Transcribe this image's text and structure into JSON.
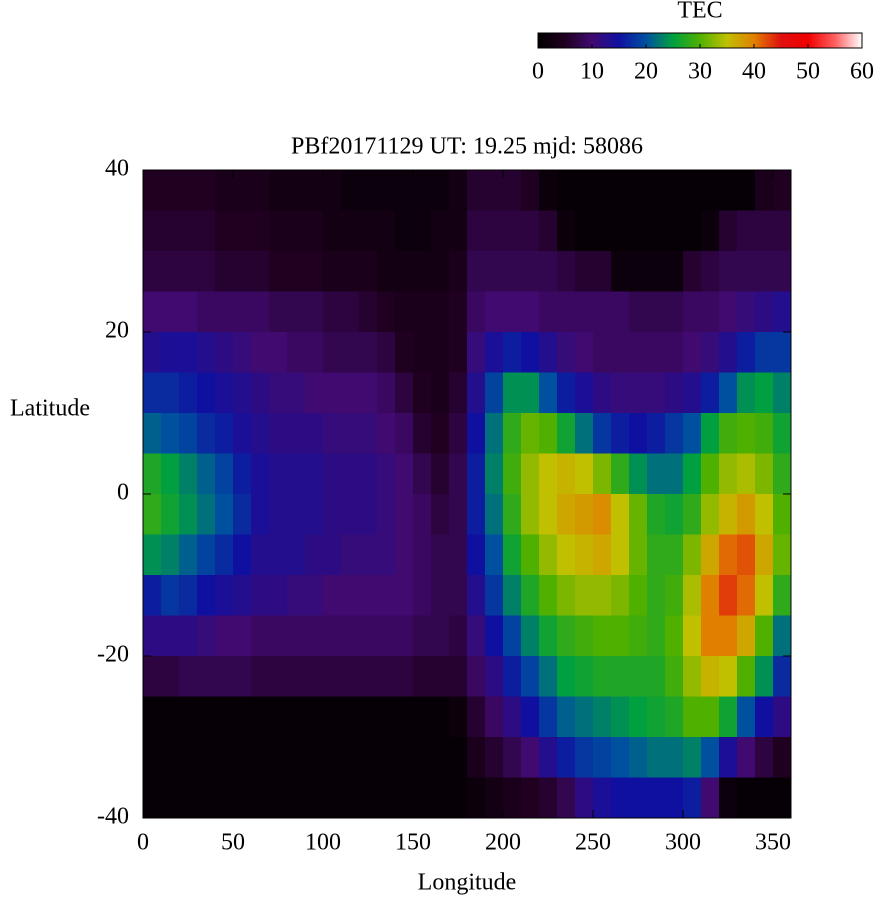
{
  "chart_data": {
    "type": "heatmap",
    "title": "PBf20171129  UT: 19.25  mjd: 58086",
    "xlabel": "Longitude",
    "ylabel": "Latitude",
    "colorbar_label": "TEC",
    "xlim": [
      0,
      360
    ],
    "ylim": [
      -40,
      40
    ],
    "xticks": [
      0,
      50,
      100,
      150,
      200,
      250,
      300,
      350
    ],
    "yticks": [
      -40,
      -20,
      0,
      20,
      40
    ],
    "clim": [
      0,
      60
    ],
    "cticks": [
      0,
      10,
      20,
      30,
      40,
      50,
      60
    ],
    "colormap": [
      "#000000",
      "#200020",
      "#400a70",
      "#1010a0",
      "#0050a0",
      "#00a040",
      "#50b000",
      "#c0c000",
      "#e08000",
      "#e01010",
      "#f00000",
      "#ff6060",
      "#ffffff"
    ],
    "x": [
      5,
      15,
      25,
      35,
      45,
      55,
      65,
      75,
      85,
      95,
      105,
      115,
      125,
      135,
      145,
      155,
      165,
      175,
      185,
      195,
      205,
      215,
      225,
      235,
      245,
      255,
      265,
      275,
      285,
      295,
      305,
      315,
      325,
      335,
      345,
      355
    ],
    "y": [
      37.5,
      32.5,
      27.5,
      22.5,
      17.5,
      12.5,
      7.5,
      2.5,
      -2.5,
      -7.5,
      -12.5,
      -17.5,
      -22.5,
      -27.5,
      -32.5,
      -37.5
    ],
    "values": [
      [
        5,
        5,
        5,
        5,
        4,
        4,
        4,
        3,
        3,
        3,
        3,
        2,
        2,
        2,
        2,
        2,
        2,
        3,
        6,
        6,
        6,
        5,
        2,
        1,
        1,
        1,
        1,
        1,
        1,
        1,
        1,
        1,
        1,
        1,
        4,
        5
      ],
      [
        6,
        6,
        6,
        6,
        5,
        5,
        5,
        4,
        4,
        4,
        3,
        3,
        3,
        3,
        2,
        2,
        3,
        3,
        7,
        7,
        7,
        7,
        6,
        2,
        1,
        1,
        1,
        1,
        1,
        1,
        1,
        2,
        6,
        7,
        7,
        7
      ],
      [
        7,
        7,
        7,
        7,
        6,
        6,
        6,
        5,
        5,
        5,
        4,
        4,
        4,
        3,
        3,
        3,
        3,
        4,
        8,
        8,
        8,
        8,
        8,
        7,
        6,
        6,
        2,
        2,
        2,
        2,
        6,
        7,
        8,
        8,
        8,
        8
      ],
      [
        10,
        10,
        10,
        9,
        9,
        9,
        9,
        8,
        8,
        8,
        7,
        7,
        6,
        5,
        4,
        4,
        4,
        5,
        9,
        10,
        10,
        10,
        9,
        9,
        9,
        9,
        9,
        8,
        8,
        8,
        9,
        9,
        10,
        11,
        12,
        13
      ],
      [
        13,
        14,
        14,
        13,
        12,
        11,
        10,
        10,
        9,
        9,
        8,
        8,
        8,
        7,
        5,
        4,
        4,
        5,
        11,
        14,
        16,
        15,
        13,
        11,
        10,
        9,
        9,
        9,
        9,
        9,
        10,
        11,
        13,
        16,
        18,
        18
      ],
      [
        17,
        17,
        16,
        15,
        14,
        13,
        12,
        11,
        11,
        10,
        10,
        10,
        10,
        9,
        7,
        5,
        4,
        6,
        13,
        19,
        24,
        24,
        20,
        16,
        14,
        12,
        11,
        11,
        11,
        12,
        13,
        16,
        20,
        24,
        25,
        23
      ],
      [
        21,
        20,
        19,
        17,
        16,
        14,
        13,
        12,
        12,
        12,
        11,
        11,
        11,
        10,
        9,
        6,
        5,
        7,
        15,
        22,
        28,
        31,
        30,
        26,
        22,
        18,
        16,
        15,
        16,
        18,
        20,
        25,
        29,
        30,
        29,
        26
      ],
      [
        27,
        25,
        23,
        21,
        19,
        16,
        14,
        13,
        13,
        13,
        12,
        12,
        12,
        11,
        10,
        8,
        6,
        8,
        16,
        23,
        29,
        33,
        35,
        36,
        35,
        32,
        28,
        24,
        22,
        22,
        25,
        30,
        33,
        34,
        32,
        28
      ],
      [
        28,
        26,
        24,
        22,
        20,
        17,
        14,
        13,
        13,
        13,
        12,
        12,
        12,
        11,
        10,
        9,
        7,
        8,
        16,
        22,
        28,
        33,
        35,
        37,
        38,
        39,
        35,
        31,
        27,
        26,
        28,
        33,
        36,
        38,
        35,
        30
      ],
      [
        24,
        23,
        21,
        19,
        17,
        15,
        13,
        13,
        13,
        12,
        12,
        11,
        11,
        11,
        10,
        9,
        8,
        8,
        15,
        20,
        26,
        30,
        33,
        35,
        36,
        37,
        35,
        31,
        28,
        28,
        32,
        37,
        41,
        42,
        37,
        31
      ],
      [
        16,
        18,
        17,
        15,
        14,
        13,
        12,
        12,
        11,
        11,
        10,
        10,
        10,
        10,
        10,
        9,
        8,
        8,
        13,
        18,
        23,
        27,
        30,
        32,
        33,
        33,
        32,
        30,
        28,
        29,
        34,
        40,
        43,
        41,
        35,
        28
      ],
      [
        12,
        12,
        12,
        11,
        10,
        10,
        9,
        9,
        9,
        9,
        9,
        9,
        9,
        9,
        9,
        8,
        8,
        7,
        11,
        15,
        19,
        23,
        26,
        28,
        29,
        30,
        30,
        29,
        28,
        30,
        35,
        40,
        40,
        37,
        30,
        22
      ],
      [
        7,
        7,
        8,
        8,
        8,
        8,
        7,
        7,
        7,
        7,
        7,
        7,
        7,
        7,
        7,
        6,
        6,
        6,
        9,
        12,
        16,
        19,
        22,
        25,
        26,
        27,
        27,
        27,
        27,
        29,
        33,
        36,
        35,
        30,
        24,
        17
      ],
      [
        1,
        1,
        1,
        1,
        1,
        1,
        1,
        1,
        1,
        1,
        1,
        1,
        1,
        1,
        1,
        1,
        1,
        2,
        6,
        9,
        12,
        15,
        18,
        21,
        22,
        23,
        24,
        25,
        26,
        27,
        30,
        30,
        26,
        20,
        15,
        12
      ],
      [
        1,
        1,
        1,
        1,
        1,
        1,
        1,
        1,
        1,
        1,
        1,
        1,
        1,
        1,
        1,
        1,
        1,
        1,
        4,
        6,
        8,
        10,
        13,
        16,
        18,
        19,
        20,
        21,
        22,
        22,
        23,
        20,
        14,
        10,
        7,
        5
      ],
      [
        1,
        1,
        1,
        1,
        1,
        1,
        1,
        1,
        1,
        1,
        1,
        1,
        1,
        1,
        1,
        1,
        1,
        1,
        2,
        3,
        4,
        5,
        6,
        8,
        12,
        14,
        15,
        15,
        15,
        15,
        16,
        10,
        2,
        1,
        1,
        1
      ]
    ]
  }
}
